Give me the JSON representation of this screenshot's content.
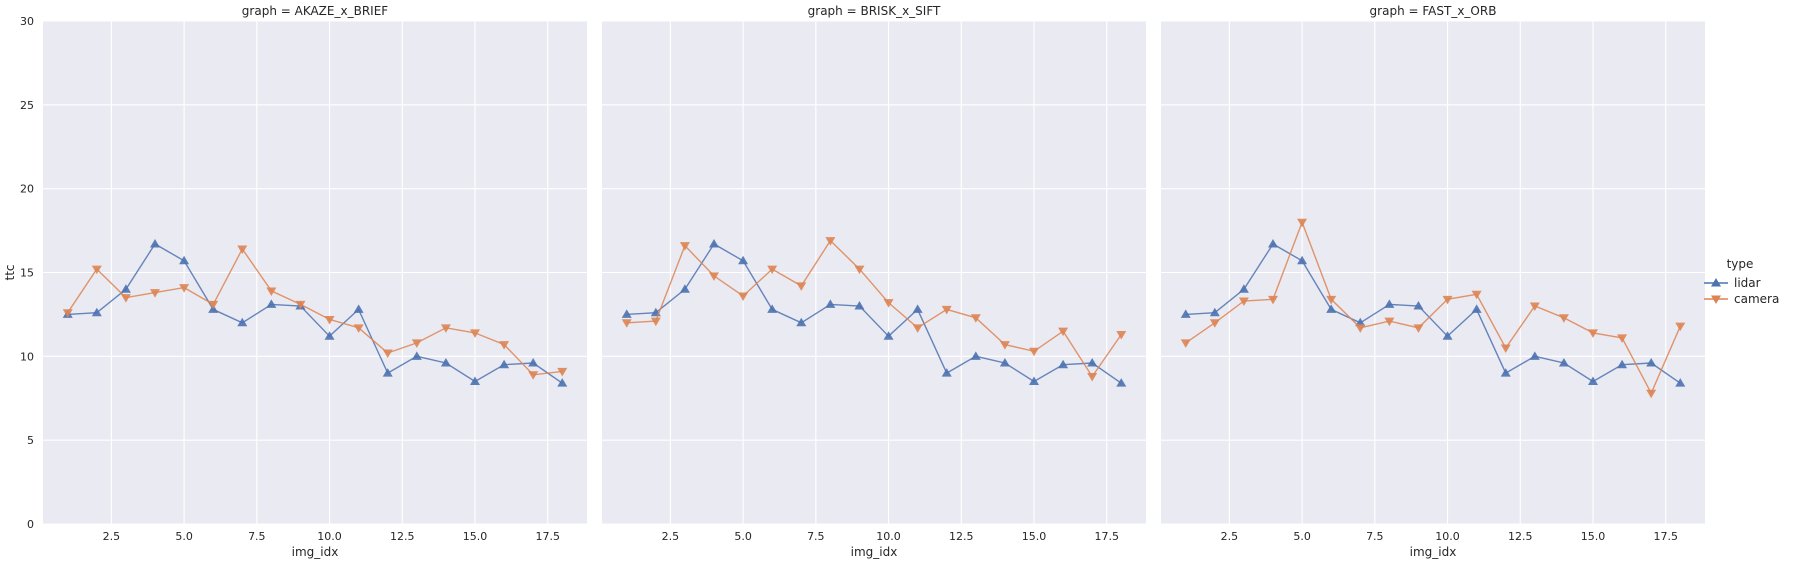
{
  "chart_data": {
    "type": "line",
    "facet_variable": "graph",
    "panel_title_prefix": "graph = ",
    "panels": [
      {
        "graph": "AKAZE_x_BRIEF",
        "x": [
          1,
          2,
          3,
          4,
          5,
          6,
          7,
          8,
          9,
          10,
          11,
          12,
          13,
          14,
          15,
          16,
          17,
          18
        ],
        "series": [
          {
            "name": "lidar",
            "values": [
              12.5,
              12.6,
              14.0,
              16.7,
              15.7,
              12.8,
              12.0,
              13.1,
              13.0,
              11.2,
              12.8,
              9.0,
              10.0,
              9.6,
              8.5,
              9.5,
              9.6,
              8.4
            ]
          },
          {
            "name": "camera",
            "values": [
              12.6,
              15.2,
              13.5,
              13.8,
              14.1,
              13.1,
              16.4,
              13.9,
              13.1,
              12.2,
              11.7,
              10.2,
              10.8,
              11.7,
              11.4,
              10.7,
              8.9,
              9.1
            ]
          }
        ]
      },
      {
        "graph": "BRISK_x_SIFT",
        "x": [
          1,
          2,
          3,
          4,
          5,
          6,
          7,
          8,
          9,
          10,
          11,
          12,
          13,
          14,
          15,
          16,
          17,
          18
        ],
        "series": [
          {
            "name": "lidar",
            "values": [
              12.5,
              12.6,
              14.0,
              16.7,
              15.7,
              12.8,
              12.0,
              13.1,
              13.0,
              11.2,
              12.8,
              9.0,
              10.0,
              9.6,
              8.5,
              9.5,
              9.6,
              8.4
            ]
          },
          {
            "name": "camera",
            "values": [
              12.0,
              12.1,
              16.6,
              14.8,
              13.6,
              15.2,
              14.2,
              16.9,
              15.2,
              13.2,
              11.7,
              12.8,
              12.3,
              10.7,
              10.3,
              11.5,
              8.8,
              11.3
            ]
          }
        ]
      },
      {
        "graph": "FAST_x_ORB",
        "x": [
          1,
          2,
          3,
          4,
          5,
          6,
          7,
          8,
          9,
          10,
          11,
          12,
          13,
          14,
          15,
          16,
          17,
          18
        ],
        "series": [
          {
            "name": "lidar",
            "values": [
              12.5,
              12.6,
              14.0,
              16.7,
              15.7,
              12.8,
              12.0,
              13.1,
              13.0,
              11.2,
              12.8,
              9.0,
              10.0,
              9.6,
              8.5,
              9.5,
              9.6,
              8.4
            ]
          },
          {
            "name": "camera",
            "values": [
              10.8,
              12.0,
              13.3,
              13.4,
              18.0,
              13.4,
              11.7,
              12.1,
              11.7,
              13.4,
              13.7,
              10.5,
              13.0,
              12.3,
              11.4,
              11.1,
              7.8,
              11.8
            ]
          }
        ]
      }
    ],
    "xlabel": "img_idx",
    "ylabel": "ttc",
    "xlim": [
      0.15,
      18.85
    ],
    "ylim": [
      0,
      30
    ],
    "xticks": [
      "2.5",
      "5.0",
      "7.5",
      "10.0",
      "12.5",
      "15.0",
      "17.5"
    ],
    "yticks": [
      "0",
      "5",
      "10",
      "15",
      "20",
      "25",
      "30"
    ],
    "grid": true,
    "legend": {
      "title": "type",
      "placement": "right",
      "entries": [
        {
          "name": "lidar",
          "marker": "triangle-up"
        },
        {
          "name": "camera",
          "marker": "triangle-down"
        }
      ]
    },
    "colors": {
      "lidar": "#4c72b0",
      "camera": "#dd8452",
      "panel_background": "#eaeaf2",
      "grid": "#ffffff"
    }
  }
}
